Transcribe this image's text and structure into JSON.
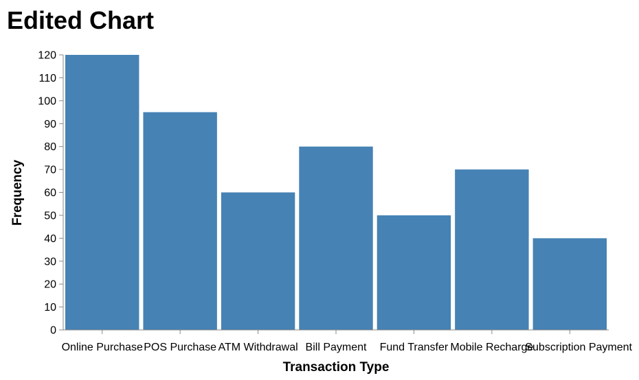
{
  "chart_data": {
    "type": "bar",
    "title": "Edited Chart",
    "xlabel": "Transaction Type",
    "ylabel": "Frequency",
    "categories": [
      "Online Purchase",
      "POS Purchase",
      "ATM Withdrawal",
      "Bill Payment",
      "Fund Transfer",
      "Mobile Recharge",
      "Subscription Payment"
    ],
    "values": [
      120,
      95,
      60,
      80,
      50,
      70,
      40
    ],
    "ylim": [
      0,
      120
    ],
    "yticks": [
      0,
      10,
      20,
      30,
      40,
      50,
      60,
      70,
      80,
      90,
      100,
      110,
      120
    ],
    "bar_color": "#4682b4",
    "grid": false,
    "legend": "none"
  }
}
